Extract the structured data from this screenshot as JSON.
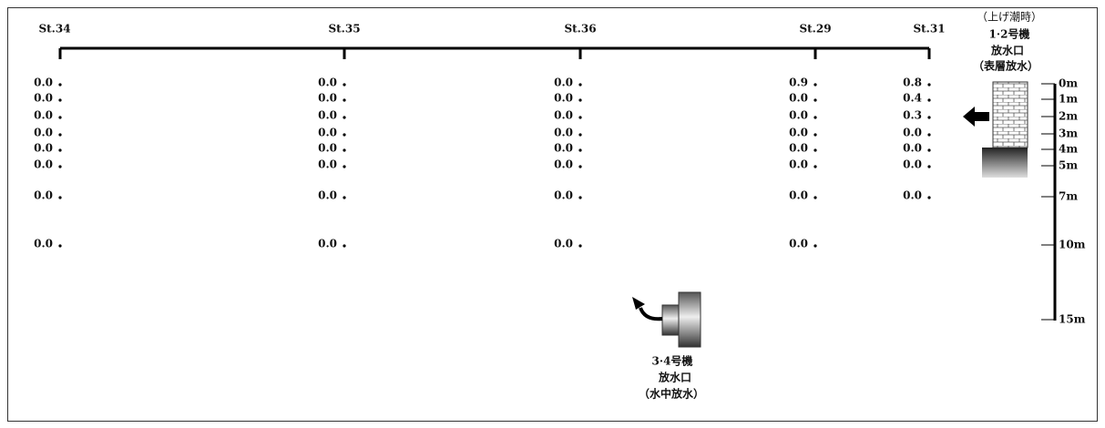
{
  "stations": [
    {
      "name": "St.34",
      "values": [
        "0.0",
        "0.0",
        "0.0",
        "0.0",
        "0.0",
        "0.0",
        "0.0",
        "0.0"
      ]
    },
    {
      "name": "St.35",
      "values": [
        "0.0",
        "0.0",
        "0.0",
        "0.0",
        "0.0",
        "0.0",
        "0.0",
        "0.0"
      ]
    },
    {
      "name": "St.36",
      "values": [
        "0.0",
        "0.0",
        "0.0",
        "0.0",
        "0.0",
        "0.0",
        "0.0",
        "0.0"
      ]
    },
    {
      "name": "St.29",
      "values": [
        "0.9",
        "0.0",
        "0.0",
        "0.0",
        "0.0",
        "0.0",
        "0.0",
        "0.0"
      ]
    },
    {
      "name": "St.31",
      "values": [
        "0.8",
        "0.4",
        "0.3",
        "0.0",
        "0.0",
        "0.0",
        "0.0"
      ]
    }
  ],
  "depths": [
    "0m",
    "1m",
    "2m",
    "3m",
    "4m",
    "5m",
    "7m",
    "10m",
    "15m"
  ],
  "surface_outlet": {
    "tide": "（上げ潮時）",
    "unit": "1·2号機",
    "name": "放水口",
    "type": "（表層放水）"
  },
  "underwater_outlet": {
    "unit": "3·4号機",
    "name": "放水口",
    "type": "（水中放水）"
  }
}
